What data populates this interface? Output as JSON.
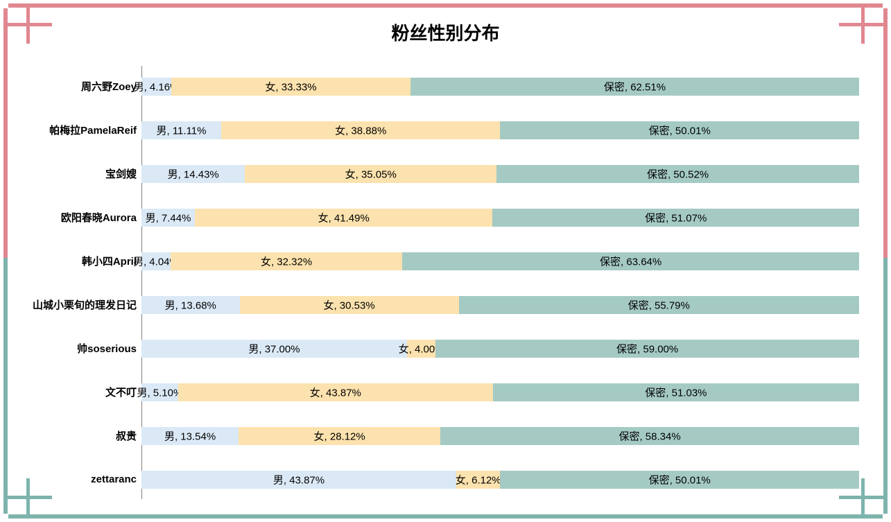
{
  "title": "粉丝性别分布",
  "frame": {
    "pink": "#e08790",
    "teal": "#7db4ad"
  },
  "axis_color": "#808080",
  "chart_data": {
    "type": "bar",
    "orientation": "horizontal",
    "stacked": true,
    "title": "粉丝性别分布",
    "xlim": [
      0,
      100
    ],
    "unit": "%",
    "grid": false,
    "legend": "none",
    "data_labels": true,
    "label_format": "{series}, {value}%",
    "categories": [
      "周六野Zoey",
      "帕梅拉PamelaReif",
      "宝剑嫂",
      "欧阳春晓Aurora",
      "韩小四April",
      "山城小栗旬的理发日记",
      "帅soserious",
      "文不叮",
      "叔贵",
      "zettaranc"
    ],
    "series": [
      {
        "key": "male",
        "name": "男",
        "color": "#dbe9f6",
        "values": [
          4.16,
          11.11,
          14.43,
          7.44,
          4.04,
          13.68,
          37.0,
          5.1,
          13.54,
          43.87
        ]
      },
      {
        "key": "female",
        "name": "女",
        "color": "#fce2ae",
        "values": [
          33.33,
          38.88,
          35.05,
          41.49,
          32.32,
          30.53,
          4.0,
          43.87,
          28.12,
          6.12
        ]
      },
      {
        "key": "secret",
        "name": "保密",
        "color": "#a5cac4",
        "values": [
          62.51,
          50.01,
          50.52,
          51.07,
          63.64,
          55.79,
          59.0,
          51.03,
          58.34,
          50.01
        ]
      }
    ]
  }
}
